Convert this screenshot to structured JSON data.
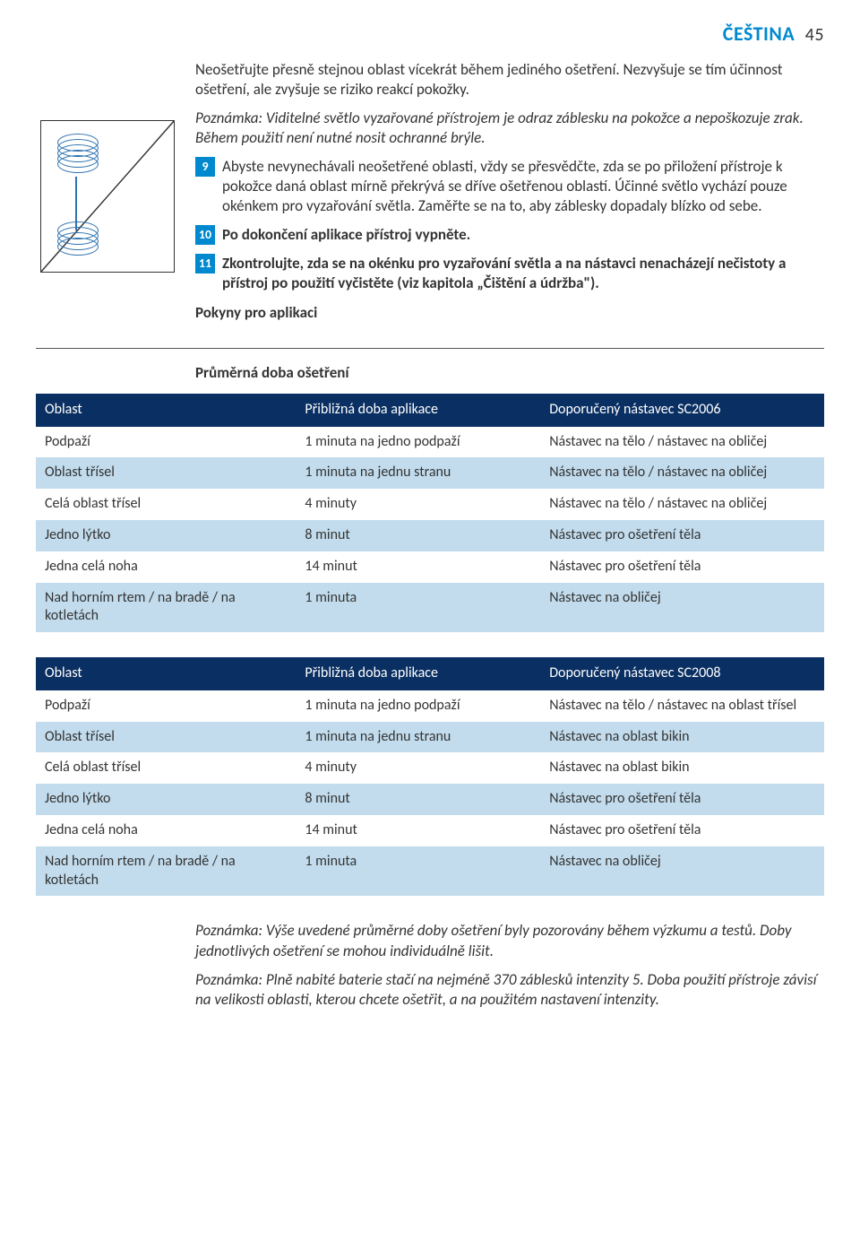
{
  "header": {
    "lang": "ČEŠTINA",
    "page": "45"
  },
  "intro": {
    "p1": "Neošetřujte přesně stejnou oblast vícekrát během jediného ošetření. Nezvyšuje se tím účinnost ošetření, ale zvyšuje se riziko reakcí pokožky.",
    "note1": "Poznámka: Viditelné světlo vyzařované přístrojem je odraz záblesku na pokožce a nepoškozuje zrak. Během použití není nutné nosit ochranné brýle."
  },
  "steps": [
    {
      "n": "9",
      "text": "Abyste nevynechávali neošetřené oblasti, vždy se přesvědčte, zda se po přiložení přístroje k pokožce daná oblast mírně překrývá se dříve ošetřenou oblastí. Účinné světlo vychází pouze okénkem pro vyzařování světla. Zaměřte se na to, aby záblesky dopadaly blízko od sebe."
    },
    {
      "n": "10",
      "text": "Po dokončení aplikace přístroj vypněte."
    },
    {
      "n": "11",
      "text": "Zkontrolujte, zda se na okénku pro vyzařování světla a na nástavci nenacházejí nečistoty a přístroj po použití vyčistěte (viz kapitola „Čištění a údržba\")."
    }
  ],
  "headings": {
    "pokyny": "Pokyny pro aplikaci",
    "prumerna": "Průměrná doba ošetření"
  },
  "table1": {
    "cols": [
      "Oblast",
      "Přibližná doba aplikace",
      "Doporučený nástavec SC2006"
    ],
    "rows": [
      [
        "Podpaží",
        "1 minuta na jedno podpaží",
        "Nástavec na tělo / nástavec na obličej"
      ],
      [
        "Oblast třísel",
        "1 minuta na jednu stranu",
        "Nástavec na tělo / nástavec na obličej"
      ],
      [
        "Celá oblast třísel",
        "4 minuty",
        "Nástavec na tělo / nástavec na obličej"
      ],
      [
        "Jedno lýtko",
        "8 minut",
        "Nástavec pro ošetření těla"
      ],
      [
        "Jedna celá noha",
        "14 minut",
        "Nástavec pro ošetření těla"
      ],
      [
        "Nad horním rtem / na bradě / na kotletách",
        "1 minuta",
        "Nástavec na obličej"
      ]
    ]
  },
  "table2": {
    "cols": [
      "Oblast",
      "Přibližná doba aplikace",
      "Doporučený nástavec SC2008"
    ],
    "rows": [
      [
        "Podpaží",
        "1 minuta na jedno podpaží",
        "Nástavec na tělo / nástavec na oblast třísel"
      ],
      [
        "Oblast třísel",
        "1 minuta na jednu stranu",
        "Nástavec na oblast bikin"
      ],
      [
        "Celá oblast třísel",
        "4 minuty",
        "Nástavec na oblast bikin"
      ],
      [
        "Jedno lýtko",
        "8 minut",
        "Nástavec pro ošetření těla"
      ],
      [
        "Jedna celá noha",
        "14 minut",
        "Nástavec pro ošetření těla"
      ],
      [
        "Nad horním rtem / na bradě / na kotletách",
        "1 minuta",
        "Nástavec na obličej"
      ]
    ]
  },
  "footer_notes": {
    "n1": "Poznámka: Výše uvedené průměrné doby ošetření byly pozorovány během výzkumu a testů. Doby jednotlivých ošetření se mohou individuálně lišit.",
    "n2": "Poznámka: Plně nabité baterie stačí na nejméně 370 záblesků intenzity 5. Doba použití přístroje závisí na velikosti oblasti, kterou chcete ošetřit, a na použitém nastavení intenzity."
  },
  "colors": {
    "accent": "#0089cf",
    "th_bg": "#0a2f62",
    "alt_row": "#c2dced"
  }
}
